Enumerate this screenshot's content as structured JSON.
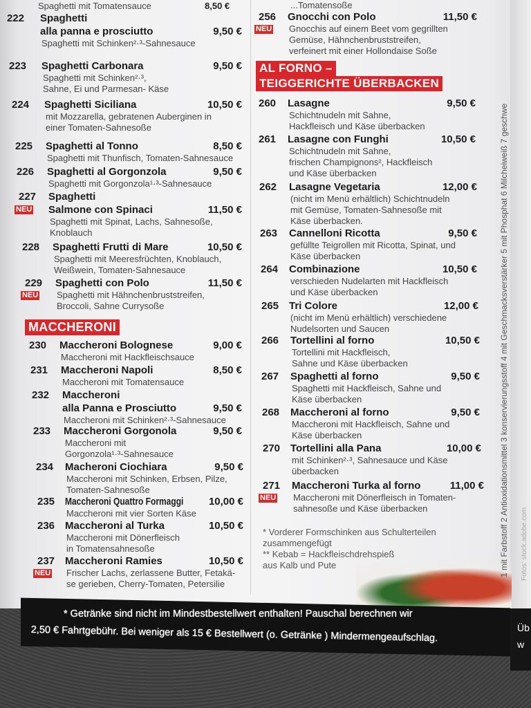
{
  "top_partial": {
    "left_desc": "Spaghetti mit Tomatensauce",
    "left_price": "8,50 €",
    "right_desc": "...Tomatensoße"
  },
  "badge_new": "NEU",
  "left_items": [
    {
      "num": "222",
      "name": [
        "Spaghetti",
        "alla panna e prosciutto"
      ],
      "price": "9,50 €",
      "desc": [
        "Spaghetti mit Schinken²·³-Sahnesauce"
      ]
    },
    {
      "num": "223",
      "name": [
        "Spaghetti Carbonara"
      ],
      "price": "9,50 €",
      "desc": [
        "Spaghetti mit Schinken²·³,",
        "Sahne, Ei und Parmesan- Käse"
      ]
    },
    {
      "num": "224",
      "name": [
        "Spaghetti Siciliana"
      ],
      "price": "10,50 €",
      "desc": [
        "mit Mozzarella, gebratenen Auberginen in",
        "einer Tomaten-Sahnesoße"
      ]
    },
    {
      "num": "225",
      "name": [
        "Spaghetti al Tonno"
      ],
      "price": "8,50 €",
      "desc": [
        "Spaghetti mit Thunfisch, Tomaten-Sahnesauce"
      ]
    },
    {
      "num": "226",
      "name": [
        "Spaghetti al Gorgonzola"
      ],
      "price": "9,50 €",
      "desc": [
        "Spaghetti mit Gorgonzola¹·³-Sahnesauce"
      ]
    },
    {
      "num": "227",
      "name": [
        "Spaghetti",
        "Salmone con Spinaci"
      ],
      "price": "11,50 €",
      "desc": [
        "Spaghetti mit Spinat, Lachs, Sahnesoße,",
        "Knoblauch"
      ],
      "new": true
    },
    {
      "num": "228",
      "name": [
        "Spaghetti Frutti di Mare"
      ],
      "price": "10,50 €",
      "desc": [
        "Spaghetti mit Meeresfrüchten, Knoblauch,",
        "Weißwein, Tomaten-Sahnesauce"
      ]
    },
    {
      "num": "229",
      "name": [
        "Spaghetti con Polo"
      ],
      "price": "11,50 €",
      "desc": [
        "Spaghetti mit Hähnchenbruststreifen,",
        "Broccoli, Sahne Currysoße"
      ],
      "new": true
    },
    {
      "num": "230",
      "name": [
        "Maccheroni Bolognese"
      ],
      "price": "9,00 €",
      "desc": [
        "Maccheroni mit Hackfleischsauce"
      ]
    },
    {
      "num": "231",
      "name": [
        "Maccheroni Napoli"
      ],
      "price": "8,50 €",
      "desc": [
        "Maccheroni mit Tomatensauce"
      ]
    },
    {
      "num": "232",
      "name": [
        "Maccheroni",
        "alla Panna e Prosciutto"
      ],
      "price": "9,50 €",
      "desc": [
        "Maccheroni mit Schinken²·³-Sahnesauce"
      ]
    },
    {
      "num": "233",
      "name": [
        "Maccheroni Gorgonola"
      ],
      "price": "9,50 €",
      "desc": [
        "Maccheroni mit",
        "Gorgonzola¹·³-Sahnesauce"
      ]
    },
    {
      "num": "234",
      "name": [
        "Macheroni Ciochiara"
      ],
      "price": "9,50 €",
      "desc": [
        "Maccheroni mit Schinken, Erbsen, Pilze,",
        "Tomaten-Sahnesoße"
      ]
    },
    {
      "num": "235",
      "name": [
        "Maccheroni  Quattro Formaggi"
      ],
      "price": "10,00 €",
      "desc": [
        "Maccheroni mit vier Sorten Käse"
      ]
    },
    {
      "num": "236",
      "name": [
        "Maccheroni al Turka"
      ],
      "price": "10,50 €",
      "desc": [
        "Maccheroni mit Dönerfleisch",
        "in Tomatensahnesoße"
      ]
    },
    {
      "num": "237",
      "name": [
        "Maccheroni Ramies"
      ],
      "price": "10,50 €",
      "desc": [
        "Frischer Lachs, zerlassene Butter, Fetakä-",
        "se gerieben, Cherry-Tomaten, Petersilie"
      ],
      "new": true
    }
  ],
  "left_header": "MACCHERONI",
  "right_header": [
    "AL FORNO –",
    "TEIGGERICHTE ÜBERBACKEN"
  ],
  "right_items": [
    {
      "num": "256",
      "name": [
        "Gnocchi con Polo"
      ],
      "price": "11,50 €",
      "desc": [
        "Gnocchis auf einem Beet vom gegrillten",
        "Gemüse, Hähnchenbruststreifen,",
        "verfeinert mit einer Hollondaise Soße"
      ],
      "new": true
    },
    {
      "num": "260",
      "name": [
        "Lasagne"
      ],
      "price": "9,50 €",
      "desc": [
        "Schichtnudeln mit Sahne,",
        "Hackfleisch und Käse überbacken"
      ]
    },
    {
      "num": "261",
      "name": [
        "Lasagne con Funghi"
      ],
      "price": "10,50 €",
      "desc": [
        "Schichtnudeln mit Sahne,",
        "frischen Champignons², Hackfleisch",
        "und Käse überbacken"
      ]
    },
    {
      "num": "262",
      "name": [
        "Lasagne Vegetaria"
      ],
      "price": "12,00 €",
      "desc": [
        "(nicht im Menü erhältlich) Schichtnudeln",
        "mit Gemüse, Tomaten-Sahnesoße mit",
        "Käse überbacken."
      ]
    },
    {
      "num": "263",
      "name": [
        "Cannelloni Ricotta"
      ],
      "price": "9,50 €",
      "desc": [
        "gefüllte Teigrollen mit Ricotta, Spinat, und",
        "Käse überbacken"
      ]
    },
    {
      "num": "264",
      "name": [
        "Combinazione"
      ],
      "price": "10,50 €",
      "desc": [
        "verschieden Nudelarten mit Hackfleisch",
        "und Käse überbacken"
      ]
    },
    {
      "num": "265",
      "name": [
        "Tri Colore"
      ],
      "price": "12,00 €",
      "desc": [
        "(nicht im Menü erhältlich) verschiedene",
        "Nudelsorten und Saucen"
      ]
    },
    {
      "num": "266",
      "name": [
        "Tortellini al forno"
      ],
      "price": "10,50 €",
      "desc": [
        "Tortellini mit Hackfleisch,",
        "Sahne und Käse überbacken"
      ]
    },
    {
      "num": "267",
      "name": [
        "Spaghetti al forno"
      ],
      "price": "9,50 €",
      "desc": [
        "Spaghetti mit Hackfleisch, Sahne und",
        "Käse überbacken"
      ]
    },
    {
      "num": "268",
      "name": [
        "Maccheroni al forno"
      ],
      "price": "9,50 €",
      "desc": [
        "Maccheroni mit Hackfleisch, Sahne und",
        "Käse überbacken"
      ]
    },
    {
      "num": "270",
      "name": [
        "Tortellini alla Pana"
      ],
      "price": "10,00 €",
      "desc": [
        "mit Schinken²·³, Sahnesauce und Käse",
        "überbacken"
      ]
    },
    {
      "num": "271",
      "name": [
        "Maccheroni Turka al forno"
      ],
      "price": "11,00 €",
      "desc": [
        "Maccheroni mit Dönerfleisch in Tomaten-",
        "sahnesoße und Käse überbacken"
      ],
      "new": true
    }
  ],
  "notes": [
    "*  Vorderer Formschinken aus Schulterteilen",
    "    zusammengefügt",
    "** Kebab = Hackfleischdrehspieß",
    "    aus Kalb und Pute"
  ],
  "additives": "1 mit Farbstoff 2 Antioxidationsmittel 3 konservierungsstoff 4 mit Geschmacksverstärker 5 mit Phosphat 6 Milcheiweiß 7 geschwe",
  "photo_credit": "Fotos: stock.adobe.com",
  "footer": [
    "* Getränke sind nicht im Mindestbestellwert enthalten! Pauschal berechnen wir",
    "2,50 € Fahrtgebühr. Bei weniger als 15 € Bestellwert (o. Getränke ) Mindermengeaufschlag."
  ],
  "next_page_fragment": [
    "Üb",
    "w"
  ],
  "colors": {
    "accent_red": "#d8262b",
    "footer_band": "#121212"
  }
}
